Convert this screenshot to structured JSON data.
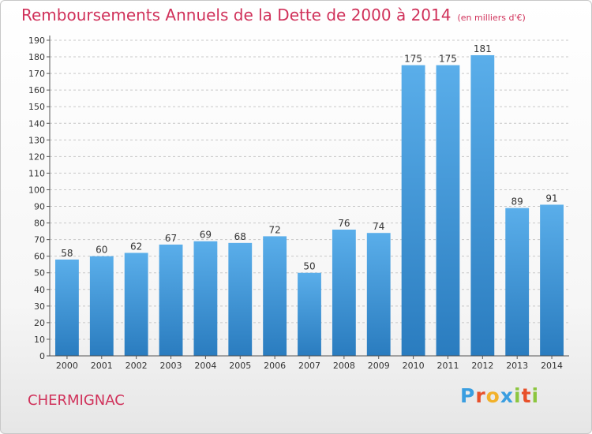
{
  "title": "Remboursements Annuels de la Dette de 2000 à 2014",
  "unit_note": "(en milliers d'€)",
  "commune": "CHERMIGNAC",
  "logo": {
    "text": "Proxiti",
    "letters": [
      {
        "ch": "P",
        "color": "#3a9ee0"
      },
      {
        "ch": "r",
        "color": "#e8502a"
      },
      {
        "ch": "o",
        "color": "#f2b12a"
      },
      {
        "ch": "x",
        "color": "#3a9ee0"
      },
      {
        "ch": "i",
        "color": "#8cc63f"
      },
      {
        "ch": "t",
        "color": "#e8502a"
      },
      {
        "ch": "i",
        "color": "#8cc63f"
      }
    ]
  },
  "colors": {
    "title": "#d0315a",
    "bar_top": "#5aaeea",
    "bar_bottom": "#2a7cbf",
    "grid": "#c8c8c8",
    "axis": "#555555",
    "label": "#333333"
  },
  "chart_data": {
    "type": "bar",
    "title": "Remboursements Annuels de la Dette de 2000 à 2014",
    "xlabel": "",
    "ylabel": "",
    "ylim": [
      0,
      190
    ],
    "ytick_step": 10,
    "grid": true,
    "categories": [
      "2000",
      "2001",
      "2002",
      "2003",
      "2004",
      "2005",
      "2006",
      "2007",
      "2008",
      "2009",
      "2010",
      "2011",
      "2012",
      "2013",
      "2014"
    ],
    "values": [
      58,
      60,
      62,
      67,
      69,
      68,
      72,
      50,
      76,
      74,
      175,
      175,
      181,
      89,
      91
    ]
  }
}
